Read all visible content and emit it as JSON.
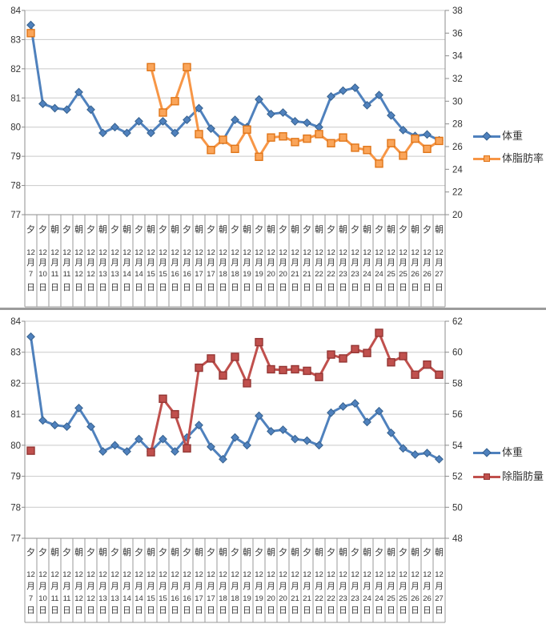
{
  "palette": {
    "grid": "#c9c9c9",
    "axis": "#8c8c8c",
    "cell_border": "#9a9a9a",
    "text": "#333333",
    "divider": "#9b9b9b",
    "weight_blue": "#4F81BD",
    "bodyfat_orange": "#F79646",
    "leanmass_red": "#C0504D"
  },
  "x_axis_units": {
    "month": "月",
    "day": "日"
  },
  "x_categories": [
    {
      "tod": "夕",
      "month": "12",
      "day": "7"
    },
    {
      "tod": "夕",
      "month": "12",
      "day": "10"
    },
    {
      "tod": "朝",
      "month": "12",
      "day": "11"
    },
    {
      "tod": "夕",
      "month": "12",
      "day": "11"
    },
    {
      "tod": "朝",
      "month": "12",
      "day": "12"
    },
    {
      "tod": "夕",
      "month": "12",
      "day": "12"
    },
    {
      "tod": "朝",
      "month": "12",
      "day": "13"
    },
    {
      "tod": "夕",
      "month": "12",
      "day": "13"
    },
    {
      "tod": "朝",
      "month": "12",
      "day": "14"
    },
    {
      "tod": "夕",
      "month": "12",
      "day": "14"
    },
    {
      "tod": "朝",
      "month": "12",
      "day": "15"
    },
    {
      "tod": "夕",
      "month": "12",
      "day": "15"
    },
    {
      "tod": "朝",
      "month": "12",
      "day": "16"
    },
    {
      "tod": "夕",
      "month": "12",
      "day": "16"
    },
    {
      "tod": "朝",
      "month": "12",
      "day": "17"
    },
    {
      "tod": "夕",
      "month": "12",
      "day": "17"
    },
    {
      "tod": "朝",
      "month": "12",
      "day": "18"
    },
    {
      "tod": "夕",
      "month": "12",
      "day": "18"
    },
    {
      "tod": "朝",
      "month": "12",
      "day": "19"
    },
    {
      "tod": "夕",
      "month": "12",
      "day": "19"
    },
    {
      "tod": "朝",
      "month": "12",
      "day": "20"
    },
    {
      "tod": "夕",
      "month": "12",
      "day": "20"
    },
    {
      "tod": "朝",
      "month": "12",
      "day": "21"
    },
    {
      "tod": "夕",
      "month": "12",
      "day": "21"
    },
    {
      "tod": "朝",
      "month": "12",
      "day": "22"
    },
    {
      "tod": "夕",
      "month": "12",
      "day": "22"
    },
    {
      "tod": "朝",
      "month": "12",
      "day": "23"
    },
    {
      "tod": "夕",
      "month": "12",
      "day": "23"
    },
    {
      "tod": "朝",
      "month": "12",
      "day": "24"
    },
    {
      "tod": "夕",
      "month": "12",
      "day": "24"
    },
    {
      "tod": "朝",
      "month": "12",
      "day": "25"
    },
    {
      "tod": "夕",
      "month": "12",
      "day": "25"
    },
    {
      "tod": "朝",
      "month": "12",
      "day": "26"
    },
    {
      "tod": "夕",
      "month": "12",
      "day": "26"
    },
    {
      "tod": "朝",
      "month": "12",
      "day": "27"
    }
  ],
  "chart_data": [
    {
      "type": "line",
      "title": "",
      "grid": true,
      "legend_position": "right",
      "left_axis": {
        "min": 77,
        "max": 84,
        "step": 1
      },
      "right_axis": {
        "min": 20,
        "max": 38,
        "step": 2
      },
      "series": [
        {
          "key": "weight",
          "name": "体重",
          "axis": "left",
          "color": "#4F81BD",
          "marker": "diamond",
          "marker_fill": "#4F81BD",
          "marker_border": "#36618E",
          "values": [
            83.5,
            80.8,
            80.65,
            80.6,
            81.2,
            80.6,
            79.8,
            80.0,
            79.8,
            80.2,
            79.8,
            80.2,
            79.8,
            80.25,
            80.65,
            79.95,
            79.55,
            80.25,
            80.0,
            80.95,
            80.45,
            80.5,
            80.2,
            80.15,
            80.0,
            81.05,
            81.25,
            81.35,
            80.75,
            81.1,
            80.4,
            79.9,
            79.7,
            79.75,
            79.55
          ]
        },
        {
          "key": "bodyfat",
          "name": "体脂肪率",
          "axis": "right",
          "color": "#F79646",
          "marker": "square",
          "marker_fill": "#FAA55A",
          "marker_border": "#E07518",
          "values": [
            36.0,
            null,
            null,
            null,
            null,
            null,
            null,
            null,
            null,
            null,
            33.0,
            29.0,
            30.0,
            33.0,
            27.1,
            25.7,
            26.6,
            25.8,
            27.5,
            25.1,
            26.8,
            26.9,
            26.4,
            26.7,
            27.1,
            26.3,
            26.8,
            25.9,
            25.7,
            24.5,
            26.3,
            25.2,
            26.7,
            25.8,
            26.5
          ]
        }
      ]
    },
    {
      "type": "line",
      "title": "",
      "grid": true,
      "legend_position": "right",
      "left_axis": {
        "min": 77,
        "max": 84,
        "step": 1
      },
      "right_axis": {
        "min": 48,
        "max": 62,
        "step": 2
      },
      "series": [
        {
          "key": "weight",
          "name": "体重",
          "axis": "left",
          "color": "#4F81BD",
          "marker": "diamond",
          "marker_fill": "#4F81BD",
          "marker_border": "#36618E",
          "values": [
            83.5,
            80.8,
            80.65,
            80.6,
            81.2,
            80.6,
            79.8,
            80.0,
            79.8,
            80.2,
            79.8,
            80.2,
            79.8,
            80.25,
            80.65,
            79.95,
            79.55,
            80.25,
            80.0,
            80.95,
            80.45,
            80.5,
            80.2,
            80.15,
            80.0,
            81.05,
            81.25,
            81.35,
            80.75,
            81.1,
            80.4,
            79.9,
            79.7,
            79.75,
            79.55
          ]
        },
        {
          "key": "leanmass",
          "name": "除脂肪量",
          "axis": "right",
          "color": "#C0504D",
          "marker": "square",
          "marker_fill": "#C0504D",
          "marker_border": "#943634",
          "values": [
            53.65,
            null,
            null,
            null,
            null,
            null,
            null,
            null,
            null,
            null,
            53.55,
            57.0,
            56.0,
            53.8,
            59.0,
            59.6,
            58.5,
            59.7,
            58.0,
            60.65,
            58.9,
            58.85,
            58.9,
            58.8,
            58.4,
            59.85,
            59.6,
            60.2,
            59.95,
            61.25,
            59.35,
            59.75,
            58.55,
            59.2,
            58.55
          ]
        }
      ]
    }
  ]
}
